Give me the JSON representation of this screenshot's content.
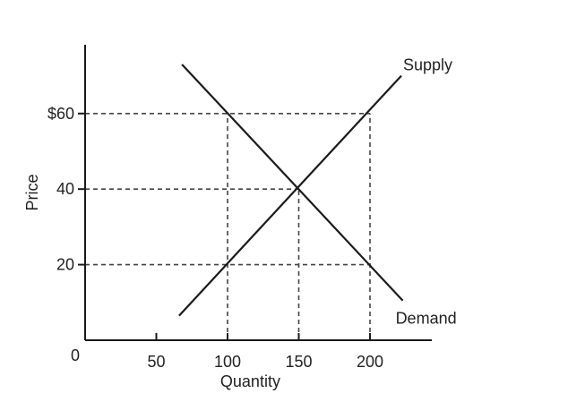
{
  "chart_data": {
    "type": "line",
    "title": "",
    "xlabel": "Quantity",
    "ylabel": "Price",
    "origin_label": "0",
    "xlim": [
      0,
      245
    ],
    "ylim": [
      0,
      75
    ],
    "grid": false,
    "x_ticks": [
      {
        "value": 50,
        "label": "50"
      },
      {
        "value": 100,
        "label": "100"
      },
      {
        "value": 150,
        "label": "150"
      },
      {
        "value": 200,
        "label": "200"
      }
    ],
    "y_ticks": [
      {
        "value": 20,
        "label": "20"
      },
      {
        "value": 40,
        "label": "40"
      },
      {
        "value": 60,
        "label": "$60"
      }
    ],
    "series": [
      {
        "name": "Supply",
        "color": "#1a1a1a",
        "points": [
          [
            66,
            6.5
          ],
          [
            222,
            70
          ]
        ]
      },
      {
        "name": "Demand",
        "color": "#1a1a1a",
        "points": [
          [
            68,
            73
          ],
          [
            223,
            10.5
          ]
        ]
      }
    ],
    "guides": [
      {
        "x": 100,
        "y": 60
      },
      {
        "x": 150,
        "y": 40
      },
      {
        "x": 200,
        "y": 60
      },
      {
        "x": 100,
        "y": 20
      },
      {
        "x": 200,
        "y": 20
      }
    ],
    "h_guides": [
      {
        "y": 60,
        "x_end": 200
      },
      {
        "y": 40,
        "x_end": 150
      },
      {
        "y": 20,
        "x_end": 200
      }
    ],
    "v_guides": [
      {
        "x": 100,
        "y_end": 60
      },
      {
        "x": 150,
        "y_end": 40
      },
      {
        "x": 200,
        "y_end": 60
      }
    ]
  }
}
